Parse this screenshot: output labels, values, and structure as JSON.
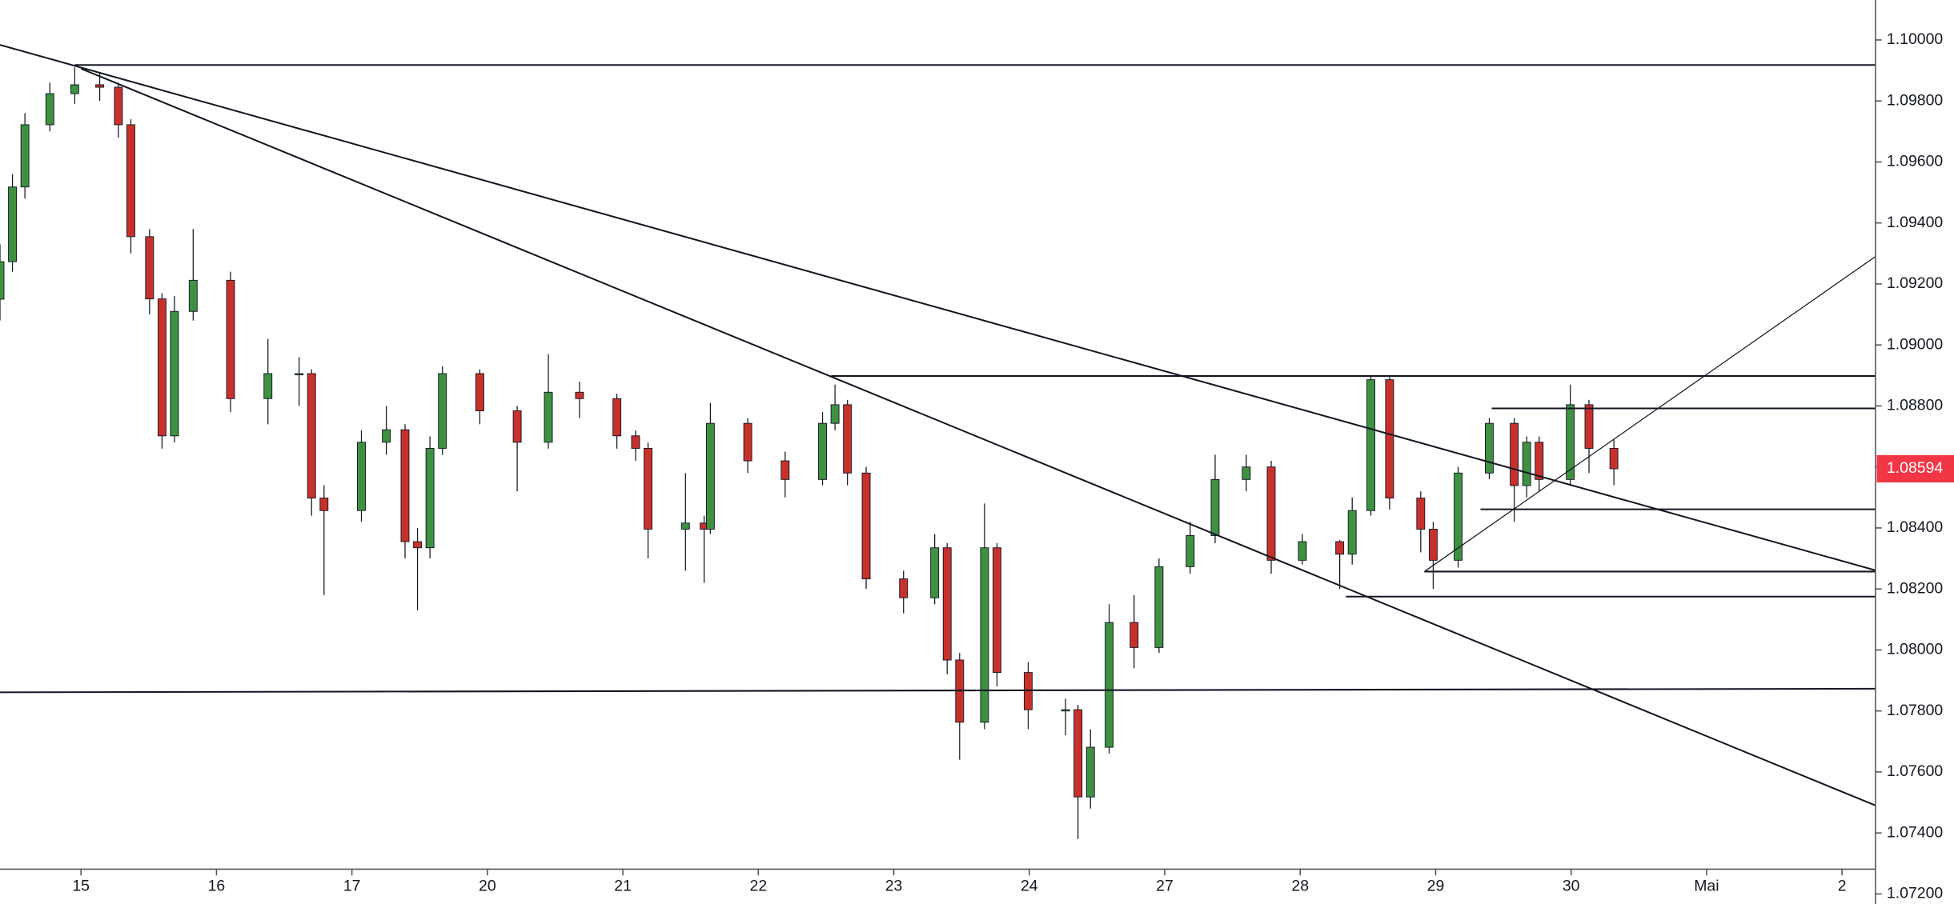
{
  "chart_data": {
    "type": "candlestick",
    "x": [
      -0.598,
      -0.506,
      -0.414,
      -0.23,
      -0.046,
      0.138,
      0.276,
      0.368,
      0.506,
      0.598,
      0.69,
      0.828,
      1.104,
      1.38,
      1.61,
      1.702,
      1.794,
      2.07,
      2.254,
      2.392,
      2.484,
      2.576,
      2.668,
      2.944,
      3.22,
      3.45,
      3.68,
      3.956,
      4.094,
      4.186,
      4.462,
      4.6,
      4.646,
      4.922,
      5.198,
      5.474,
      5.566,
      5.658,
      5.796,
      6.072,
      6.302,
      6.394,
      6.486,
      6.67,
      6.762,
      6.992,
      7.268,
      7.36,
      7.452,
      7.59,
      7.774,
      7.958,
      8.188,
      8.372,
      8.602,
      8.786,
      9.016,
      9.292,
      9.384,
      9.522,
      9.66,
      9.89,
      9.982,
      10.166,
      10.396,
      10.58,
      10.672,
      10.764,
      10.994,
      11.132,
      11.316
    ],
    "open": [
      1.0915,
      1.09273,
      1.09518,
      1.09722,
      1.09824,
      1.09853,
      1.09845,
      1.09722,
      1.09355,
      1.09151,
      1.08702,
      1.0911,
      1.09212,
      1.08824,
      1.08906,
      1.08906,
      1.08498,
      1.08457,
      1.08681,
      1.08722,
      1.08355,
      1.08335,
      1.08661,
      1.08906,
      1.08784,
      1.08681,
      1.08845,
      1.08824,
      1.08702,
      1.08661,
      1.08396,
      1.08416,
      1.08396,
      1.08743,
      1.0862,
      1.08559,
      1.08743,
      1.08804,
      1.0858,
      1.08233,
      1.08171,
      1.08335,
      1.07967,
      1.07763,
      1.08335,
      1.07926,
      1.07804,
      1.07804,
      1.07518,
      1.07681,
      1.0809,
      1.08008,
      1.08273,
      1.08375,
      1.08559,
      1.086,
      1.08294,
      1.08355,
      1.08314,
      1.08457,
      1.08886,
      1.08498,
      1.08396,
      1.08294,
      1.0858,
      1.08743,
      1.08539,
      1.08681,
      1.08559,
      1.08804,
      1.08661
    ],
    "high": [
      1.0933,
      1.0956,
      1.0976,
      1.0986,
      1.0991,
      1.0989,
      1.0986,
      1.0974,
      1.0938,
      1.0917,
      1.0916,
      1.0938,
      1.0924,
      1.0902,
      1.0896,
      1.0892,
      1.0854,
      1.0872,
      1.088,
      1.0874,
      1.084,
      1.087,
      1.0893,
      1.0892,
      1.088,
      1.0897,
      1.0888,
      1.0884,
      1.0872,
      1.0868,
      1.0858,
      1.0844,
      1.0881,
      1.0876,
      1.0865,
      1.0878,
      1.0887,
      1.0882,
      1.086,
      1.0826,
      1.0838,
      1.0835,
      1.0799,
      1.0848,
      1.0835,
      1.0796,
      1.0784,
      1.0782,
      1.0774,
      1.0815,
      1.0818,
      1.083,
      1.0842,
      1.0864,
      1.0864,
      1.0862,
      1.0838,
      1.0836,
      1.085,
      1.089,
      1.089,
      1.0852,
      1.0842,
      1.086,
      1.0876,
      1.0876,
      1.087,
      1.087,
      1.0887,
      1.0882,
      1.0869
    ],
    "low": [
      1.0908,
      1.0924,
      1.0948,
      1.097,
      1.0979,
      1.098,
      1.0968,
      1.093,
      1.091,
      1.0866,
      1.0868,
      1.0908,
      1.0878,
      1.0874,
      1.088,
      1.0844,
      1.0818,
      1.0842,
      1.0864,
      1.083,
      1.0813,
      1.083,
      1.0864,
      1.0874,
      1.0852,
      1.0866,
      1.0876,
      1.0866,
      1.0862,
      1.083,
      1.0826,
      1.0822,
      1.0838,
      1.0858,
      1.085,
      1.0854,
      1.0872,
      1.0854,
      1.082,
      1.0812,
      1.0815,
      1.0792,
      1.0764,
      1.0774,
      1.0788,
      1.0774,
      1.0772,
      1.0738,
      1.0748,
      1.0766,
      1.0794,
      1.0799,
      1.0825,
      1.0835,
      1.0852,
      1.0825,
      1.0828,
      1.082,
      1.0828,
      1.0844,
      1.0846,
      1.0832,
      1.082,
      1.0827,
      1.0856,
      1.0842,
      1.085,
      1.0852,
      1.0854,
      1.0858,
      1.0854
    ],
    "close": [
      1.09273,
      1.09518,
      1.09722,
      1.09824,
      1.09853,
      1.09845,
      1.09722,
      1.09355,
      1.09151,
      1.08702,
      1.0911,
      1.09212,
      1.08824,
      1.08906,
      1.08906,
      1.08498,
      1.08457,
      1.08681,
      1.08722,
      1.08355,
      1.08335,
      1.08661,
      1.08906,
      1.08784,
      1.08681,
      1.08845,
      1.08824,
      1.08702,
      1.08661,
      1.08396,
      1.08416,
      1.08396,
      1.08743,
      1.0862,
      1.08559,
      1.08743,
      1.08804,
      1.0858,
      1.08233,
      1.08171,
      1.08335,
      1.07967,
      1.07763,
      1.08335,
      1.07926,
      1.07804,
      1.07804,
      1.07518,
      1.07681,
      1.0809,
      1.08008,
      1.08273,
      1.08375,
      1.08559,
      1.086,
      1.08294,
      1.08355,
      1.08314,
      1.08457,
      1.08886,
      1.08498,
      1.08396,
      1.08294,
      1.0858,
      1.08743,
      1.08539,
      1.08681,
      1.08559,
      1.08804,
      1.08661,
      1.08594
    ],
    "up_color": "#3f9142",
    "down_color": "#c8312b",
    "last_price": {
      "value": 1.08594,
      "label": "1.08594",
      "color": "#f23645"
    },
    "lines": [
      {
        "x": [
          -0.046,
          13.247
        ],
        "y": [
          1.09918,
          1.09918
        ]
      },
      {
        "x": [
          -0.598,
          13.247
        ],
        "y": [
          1.07861,
          1.07873
        ]
      },
      {
        "x": [
          -0.598,
          13.247
        ],
        "y": [
          1.09984,
          1.08261
        ]
      },
      {
        "x": [
          0,
          13.247
        ],
        "y": [
          1.09906,
          1.0749
        ]
      },
      {
        "x": [
          5.538,
          13.247
        ],
        "y": [
          1.08898,
          1.08898
        ]
      },
      {
        "x": [
          10.414,
          13.247
        ],
        "y": [
          1.08792,
          1.08792
        ]
      },
      {
        "x": [
          10.331,
          13.247
        ],
        "y": [
          1.08461,
          1.08461
        ]
      },
      {
        "x": [
          9.917,
          13.247
        ],
        "y": [
          1.08257,
          1.08257
        ]
      },
      {
        "x": [
          9.338,
          13.247
        ],
        "y": [
          1.08175,
          1.08175
        ]
      },
      {
        "x": [
          9.917,
          13.247
        ],
        "y": [
          1.08257,
          1.0929
        ]
      }
    ],
    "xlim": [
      -0.598,
      13.247
    ],
    "ylim": [
      1.07167,
      1.10131
    ],
    "xticks": [
      {
        "value": 0,
        "label": "15"
      },
      {
        "value": 1,
        "label": "16"
      },
      {
        "value": 2,
        "label": "17"
      },
      {
        "value": 3,
        "label": "20"
      },
      {
        "value": 4,
        "label": "21"
      },
      {
        "value": 5,
        "label": "22"
      },
      {
        "value": 6,
        "label": "23"
      },
      {
        "value": 7,
        "label": "24"
      },
      {
        "value": 8,
        "label": "27"
      },
      {
        "value": 9,
        "label": "28"
      },
      {
        "value": 10,
        "label": "29"
      },
      {
        "value": 11,
        "label": "30"
      },
      {
        "value": 12,
        "label": "Mai"
      },
      {
        "value": 13,
        "label": "2"
      }
    ],
    "yticks": [
      {
        "value": 1.072,
        "label": "1.07200"
      },
      {
        "value": 1.074,
        "label": "1.07400"
      },
      {
        "value": 1.076,
        "label": "1.07600"
      },
      {
        "value": 1.078,
        "label": "1.07800"
      },
      {
        "value": 1.08,
        "label": "1.08000"
      },
      {
        "value": 1.082,
        "label": "1.08200"
      },
      {
        "value": 1.084,
        "label": "1.08400"
      },
      {
        "value": 1.086,
        "label": "1.08600"
      },
      {
        "value": 1.088,
        "label": "1.08800"
      },
      {
        "value": 1.09,
        "label": "1.09000"
      },
      {
        "value": 1.092,
        "label": "1.09200"
      },
      {
        "value": 1.094,
        "label": "1.09400"
      },
      {
        "value": 1.096,
        "label": "1.09600"
      },
      {
        "value": 1.098,
        "label": "1.09800"
      },
      {
        "value": 1.1,
        "label": "1.10000"
      }
    ]
  }
}
